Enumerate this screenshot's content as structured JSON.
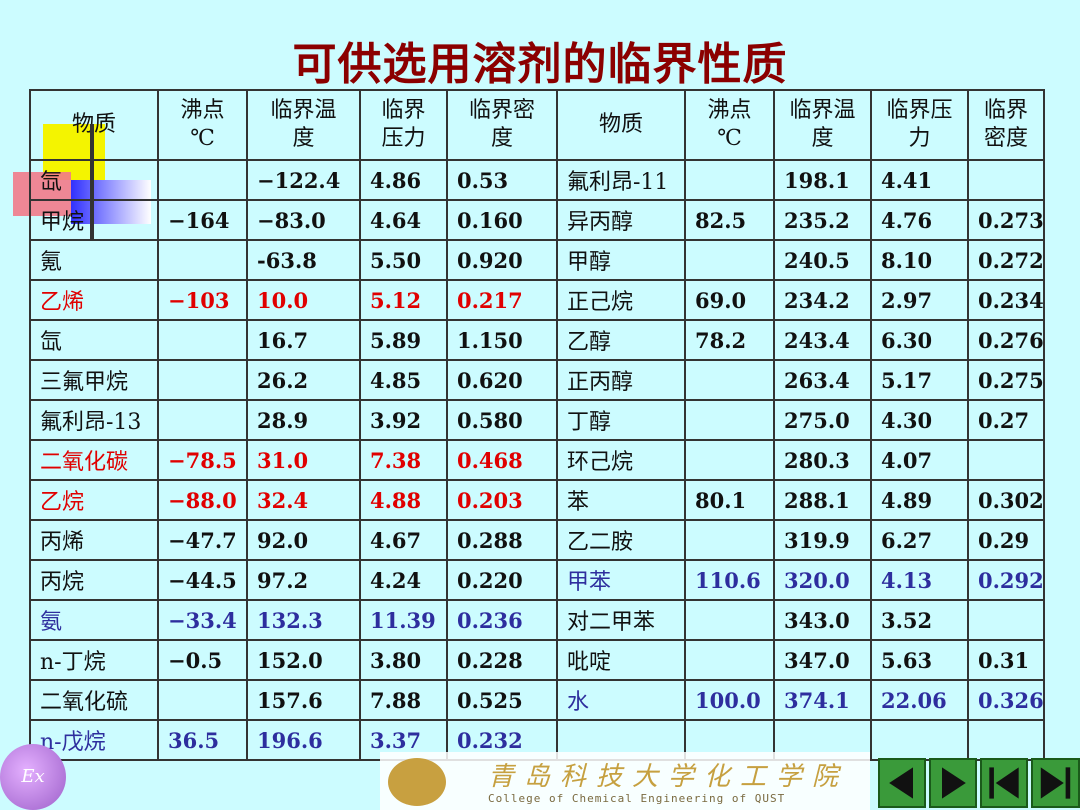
{
  "title": "可供选用溶剂的临界性质",
  "header": [
    "物质",
    "沸点\n℃",
    "临界温\n度",
    "临界\n压力",
    "临界密\n度",
    "物质",
    "沸点\n℃",
    "临界温\n度",
    "临界压\n力",
    "临界\n密度"
  ],
  "rows": [
    {
      "left": [
        "氙",
        "",
        "−122.4",
        "4.86",
        "0.53"
      ],
      "right": [
        "氟利昂-11",
        "",
        "198.1",
        "4.41",
        ""
      ]
    },
    {
      "left": [
        "甲烷",
        "−164",
        "−83.0",
        "4.64",
        "0.160"
      ],
      "right": [
        "异丙醇",
        "82.5",
        "235.2",
        "4.76",
        "0.273"
      ]
    },
    {
      "left": [
        "氪",
        "",
        "-63.8",
        "5.50",
        "0.920"
      ],
      "right": [
        "甲醇",
        "",
        "240.5",
        "8.10",
        "0.272"
      ]
    },
    {
      "left": [
        "乙烯",
        "−103",
        "10.0",
        "5.12",
        "0.217"
      ],
      "right": [
        "正己烷",
        "69.0",
        "234.2",
        "2.97",
        "0.234"
      ],
      "left_color": "red"
    },
    {
      "left": [
        "氙",
        "",
        "16.7",
        "5.89",
        "1.150"
      ],
      "right": [
        "乙醇",
        "78.2",
        "243.4",
        "6.30",
        "0.276"
      ]
    },
    {
      "left": [
        "三氟甲烷",
        "",
        "26.2",
        "4.85",
        "0.620"
      ],
      "right": [
        "正丙醇",
        "",
        "263.4",
        "5.17",
        "0.275"
      ]
    },
    {
      "left": [
        "氟利昂-13",
        "",
        "28.9",
        "3.92",
        "0.580"
      ],
      "right": [
        "丁醇",
        "",
        "275.0",
        "4.30",
        "0.27"
      ]
    },
    {
      "left": [
        "二氧化碳",
        "−78.5",
        "31.0",
        "7.38",
        "0.468"
      ],
      "right": [
        "环己烷",
        "",
        "280.3",
        "4.07",
        ""
      ],
      "left_color": "red"
    },
    {
      "left": [
        "乙烷",
        "−88.0",
        "32.4",
        "4.88",
        "0.203"
      ],
      "right": [
        "苯",
        "80.1",
        "288.1",
        "4.89",
        "0.302"
      ],
      "left_color": "red"
    },
    {
      "left": [
        "丙烯",
        "−47.7",
        "92.0",
        "4.67",
        "0.288"
      ],
      "right": [
        "乙二胺",
        "",
        "319.9",
        "6.27",
        "0.29"
      ]
    },
    {
      "left": [
        "丙烷",
        "−44.5",
        "97.2",
        "4.24",
        "0.220"
      ],
      "right": [
        "甲苯",
        "110.6",
        "320.0",
        "4.13",
        "0.292"
      ],
      "right_color": "blue"
    },
    {
      "left": [
        "氨",
        "−33.4",
        "132.3",
        "11.39",
        "0.236"
      ],
      "right": [
        "对二甲苯",
        "",
        "343.0",
        "3.52",
        ""
      ],
      "left_color": "blue"
    },
    {
      "left": [
        "n-丁烷",
        "−0.5",
        "152.0",
        "3.80",
        "0.228"
      ],
      "right": [
        "吡啶",
        "",
        "347.0",
        "5.63",
        "0.31"
      ]
    },
    {
      "left": [
        "二氧化硫",
        "",
        "157.6",
        "7.88",
        "0.525"
      ],
      "right": [
        "水",
        "100.0",
        "374.1",
        "22.06",
        "0.326"
      ],
      "right_color": "blue"
    },
    {
      "left": [
        "n-戊烷",
        "36.5",
        "196.6",
        "3.37",
        "0.232"
      ],
      "right": [
        "",
        "",
        "",
        "",
        ""
      ],
      "left_color": "blue"
    }
  ],
  "footer": {
    "badge": "Ex",
    "school_cn": "青岛科技大学化工学院",
    "school_en": "College of Chemical Engineering of QUST"
  },
  "nav": [
    "nav-previous-icon",
    "nav-next-icon",
    "nav-first-icon",
    "nav-last-icon"
  ]
}
